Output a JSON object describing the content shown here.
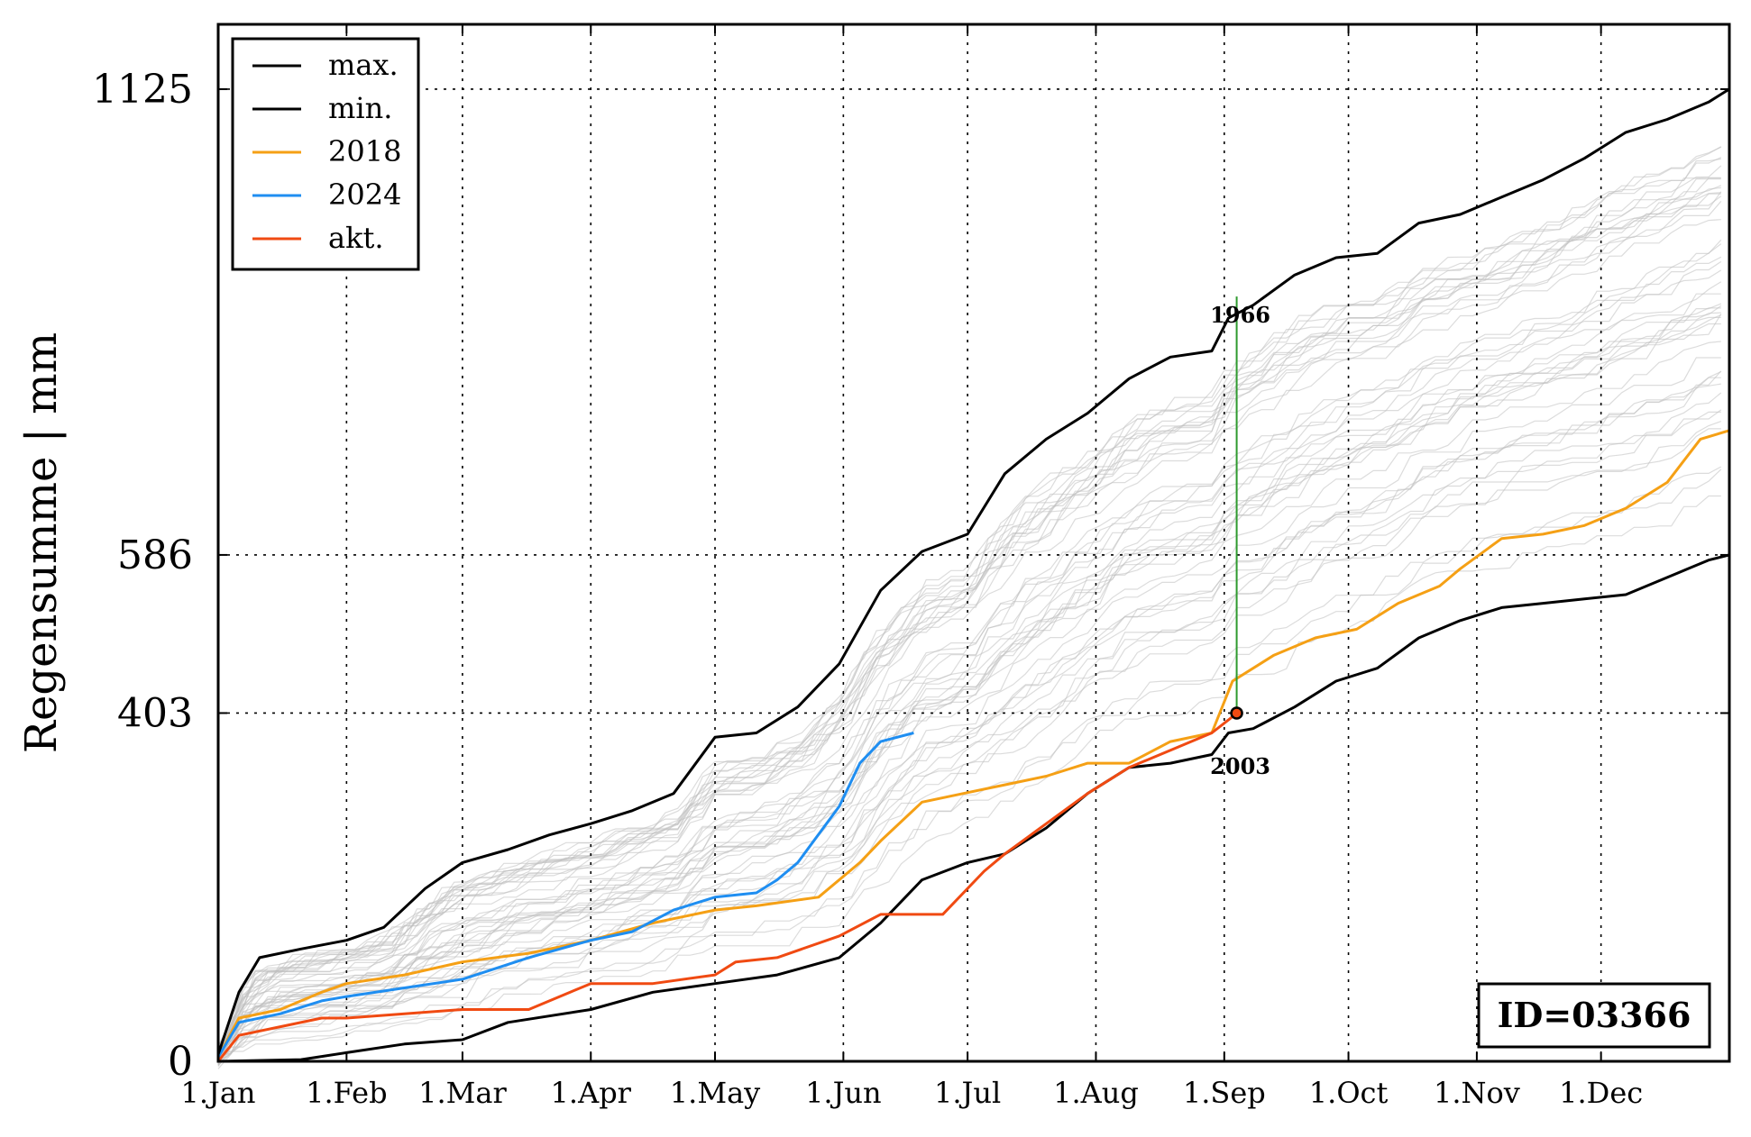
{
  "chart_data": {
    "type": "line",
    "ylabel": "Regensumme | mm",
    "xlabel": "",
    "ylim": [
      0,
      1200
    ],
    "xlim": [
      0,
      365
    ],
    "grid": true,
    "y_ticks": [
      0,
      403,
      586,
      1125
    ],
    "y_tick_labels": [
      "0",
      "403",
      "586",
      "1125"
    ],
    "x_tick_days": [
      0,
      31,
      59,
      90,
      120,
      151,
      181,
      212,
      243,
      273,
      304,
      334
    ],
    "x_tick_labels": [
      "1.Jan",
      "1.Feb",
      "1.Mar",
      "1.Apr",
      "1.May",
      "1.Jun",
      "1.Jul",
      "1.Aug",
      "1.Sep",
      "1.Oct",
      "1.Nov",
      "1.Dec"
    ],
    "legend_position": "top-left",
    "legend": [
      "max.",
      "min.",
      "2018",
      "2024",
      "akt."
    ],
    "colors": {
      "max": "#000000",
      "min": "#000000",
      "y2018": "#f5a015",
      "y2024": "#1f8ef1",
      "akt": "#f04a12",
      "background_years": "#c0c0c0",
      "marker_line": "#2e9a2e"
    },
    "series": [
      {
        "name": "max.",
        "x": [
          0,
          5,
          10,
          20,
          31,
          40,
          50,
          59,
          70,
          80,
          90,
          100,
          110,
          120,
          130,
          140,
          150,
          160,
          170,
          181,
          190,
          200,
          210,
          220,
          230,
          240,
          244,
          250,
          260,
          270,
          280,
          290,
          300,
          310,
          320,
          330,
          340,
          350,
          355,
          360,
          365
        ],
        "values": [
          8,
          80,
          120,
          130,
          140,
          155,
          200,
          230,
          245,
          262,
          275,
          290,
          310,
          375,
          380,
          410,
          460,
          545,
          590,
          610,
          680,
          720,
          750,
          790,
          815,
          822,
          860,
          875,
          910,
          930,
          935,
          970,
          980,
          1000,
          1020,
          1045,
          1075,
          1090,
          1100,
          1110,
          1125
        ]
      },
      {
        "name": "min.",
        "x": [
          0,
          20,
          31,
          45,
          59,
          70,
          90,
          105,
          120,
          135,
          150,
          160,
          170,
          181,
          190,
          200,
          210,
          220,
          230,
          240,
          244,
          250,
          260,
          270,
          280,
          290,
          300,
          310,
          320,
          330,
          340,
          350,
          355,
          360,
          365
        ],
        "values": [
          0,
          2,
          10,
          20,
          25,
          45,
          60,
          80,
          90,
          100,
          120,
          160,
          210,
          230,
          240,
          270,
          310,
          340,
          345,
          355,
          380,
          385,
          410,
          440,
          455,
          490,
          510,
          525,
          530,
          535,
          540,
          560,
          570,
          580,
          586
        ]
      },
      {
        "name": "2018",
        "x": [
          0,
          5,
          15,
          25,
          31,
          45,
          59,
          75,
          90,
          105,
          120,
          130,
          145,
          155,
          160,
          170,
          180,
          190,
          200,
          210,
          220,
          230,
          240,
          245,
          255,
          265,
          275,
          285,
          295,
          300,
          310,
          320,
          330,
          340,
          350,
          358,
          365
        ],
        "values": [
          5,
          50,
          60,
          80,
          90,
          100,
          115,
          125,
          140,
          160,
          175,
          180,
          190,
          230,
          255,
          300,
          310,
          320,
          330,
          345,
          345,
          370,
          380,
          440,
          470,
          490,
          500,
          530,
          550,
          570,
          605,
          610,
          620,
          640,
          670,
          720,
          730
        ]
      },
      {
        "name": "2024",
        "x": [
          0,
          5,
          15,
          25,
          31,
          45,
          59,
          75,
          90,
          100,
          110,
          120,
          130,
          135,
          140,
          150,
          155,
          160,
          168
        ],
        "values": [
          5,
          45,
          55,
          70,
          75,
          85,
          95,
          120,
          140,
          150,
          175,
          190,
          195,
          210,
          230,
          295,
          345,
          370,
          380
        ]
      },
      {
        "name": "akt.",
        "x": [
          0,
          5,
          15,
          25,
          31,
          45,
          59,
          75,
          90,
          105,
          120,
          125,
          135,
          150,
          160,
          175,
          185,
          190,
          200,
          210,
          220,
          230,
          240,
          244,
          246
        ],
        "values": [
          0,
          30,
          40,
          50,
          50,
          55,
          60,
          60,
          90,
          90,
          100,
          115,
          120,
          145,
          170,
          170,
          220,
          240,
          275,
          310,
          340,
          360,
          380,
          395,
          403
        ]
      }
    ],
    "annotations": [
      {
        "label": "1966",
        "x": 246,
        "y": 855
      },
      {
        "label": "2003",
        "x": 246,
        "y": 345
      }
    ],
    "current_point": {
      "x": 246,
      "y": 403
    },
    "id_box": "ID=03366"
  }
}
